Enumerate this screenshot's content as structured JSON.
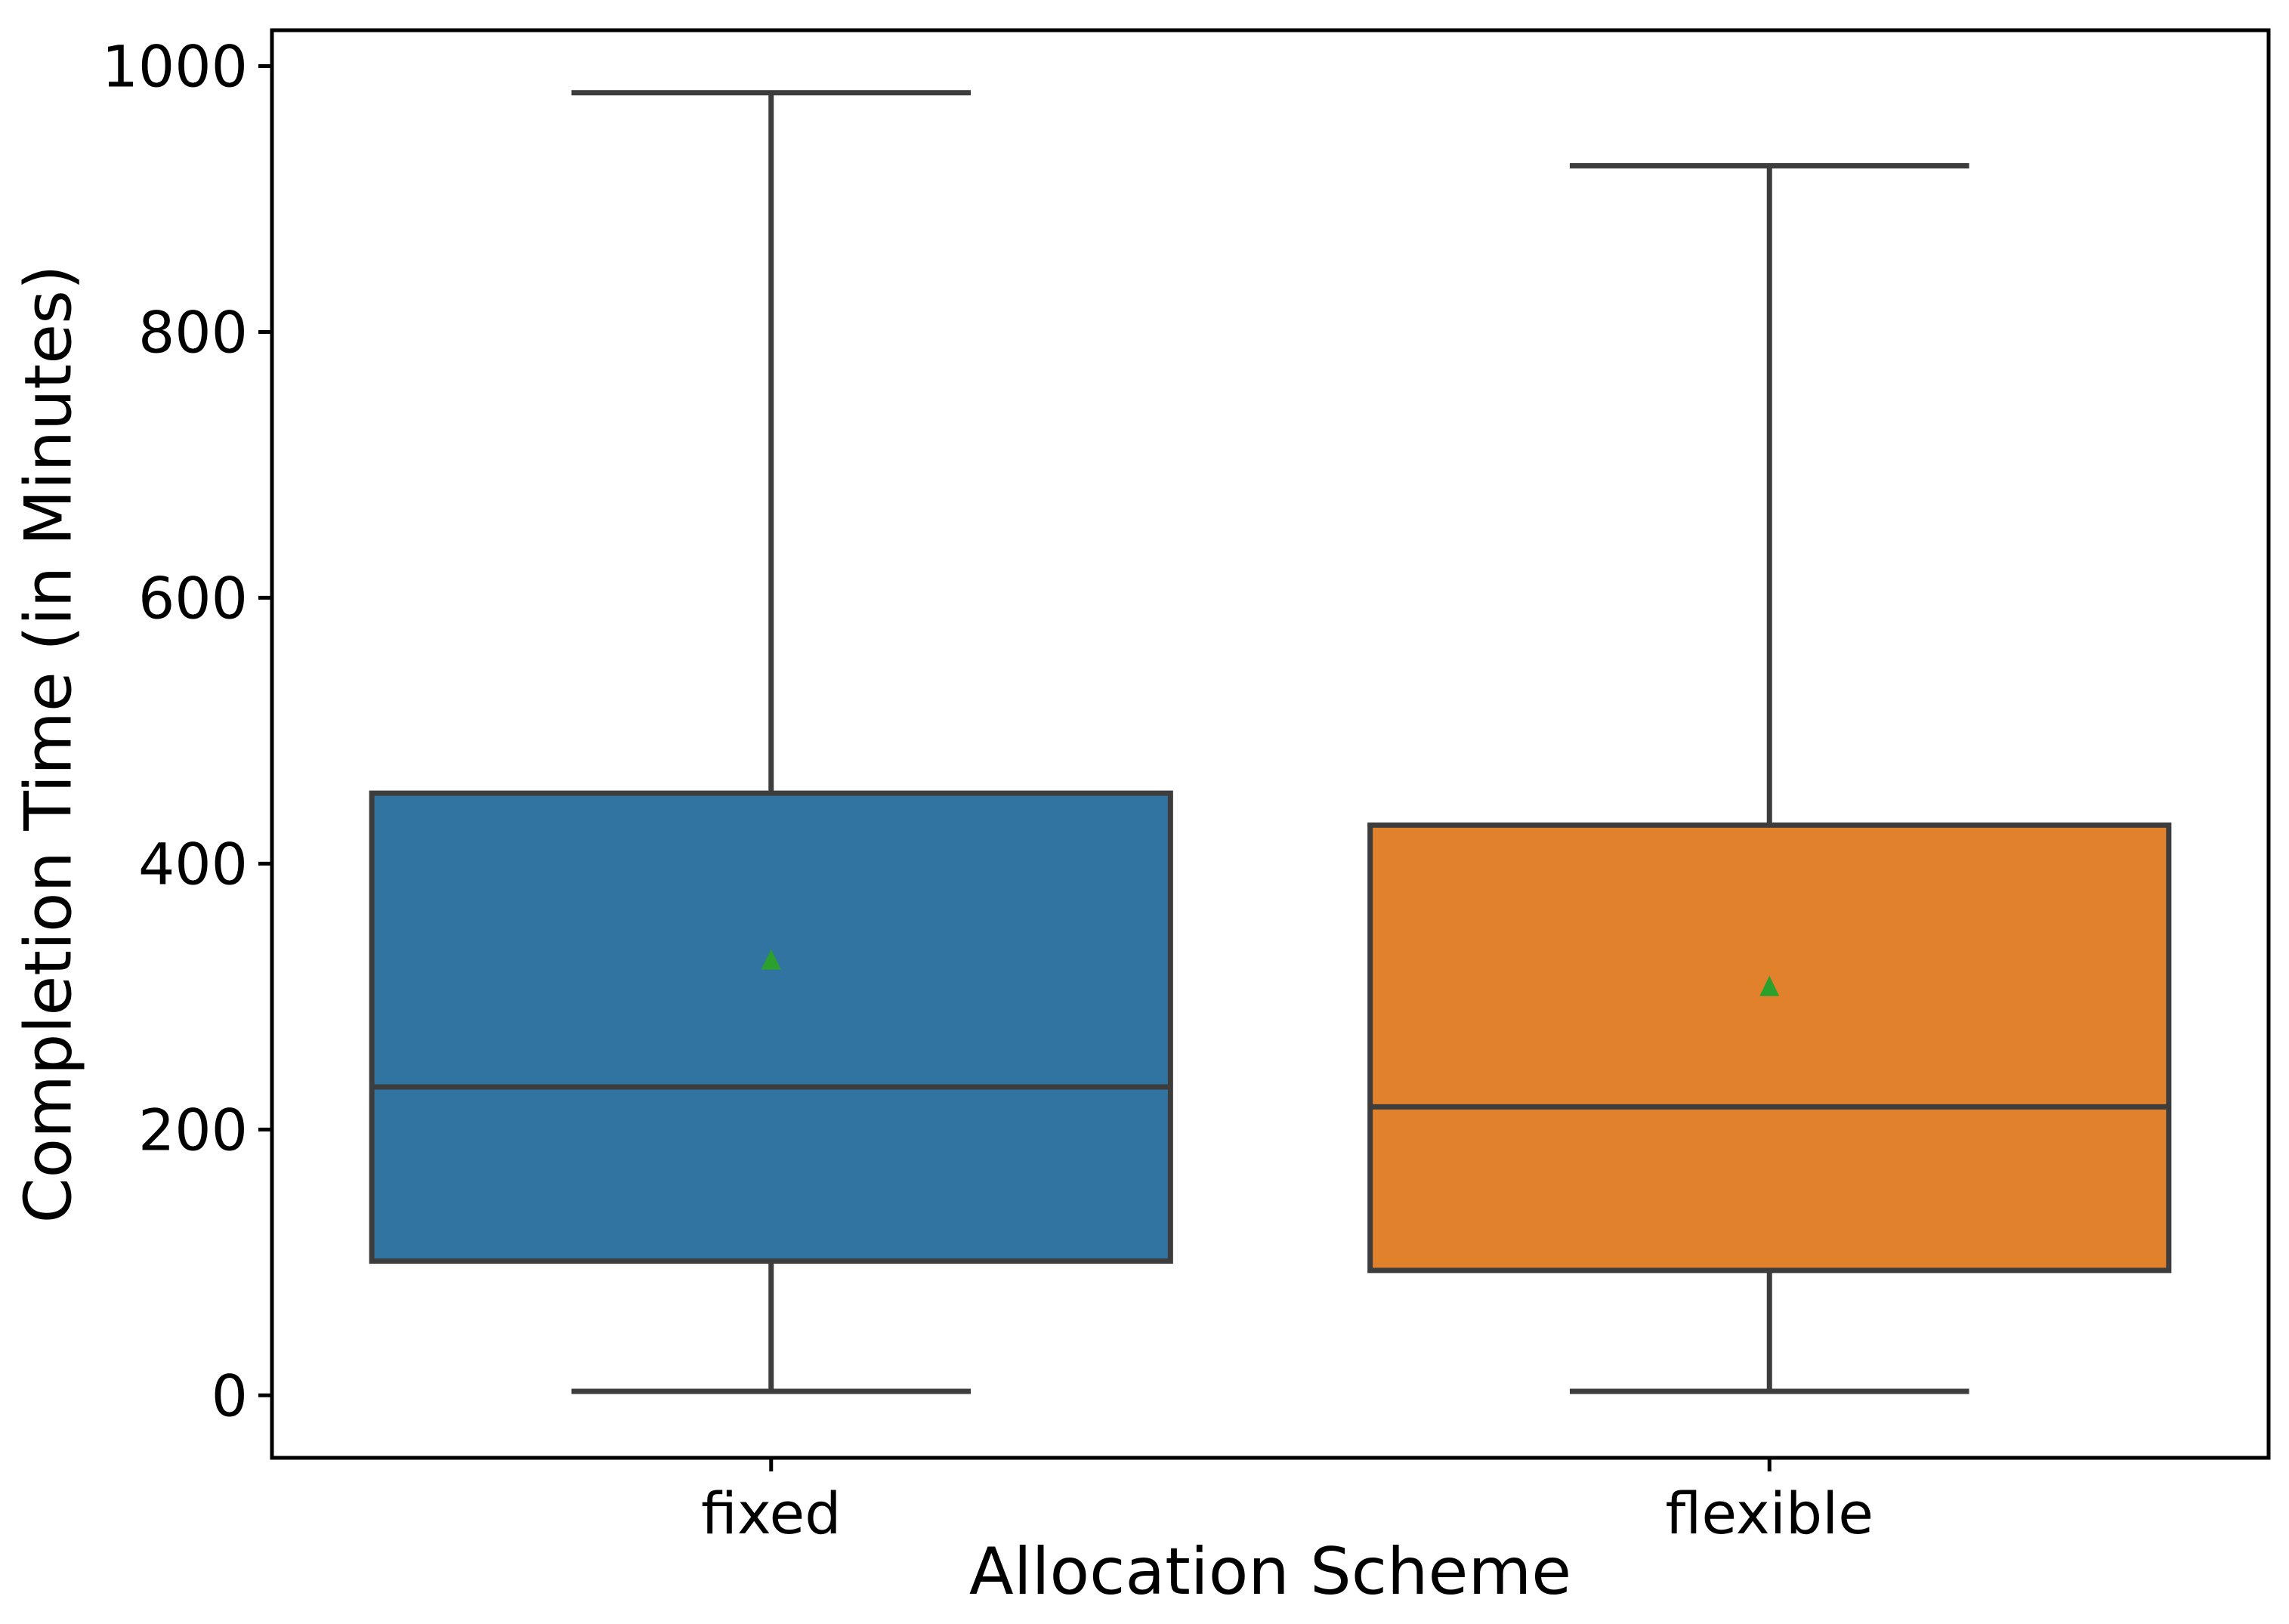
{
  "chart_data": {
    "type": "box",
    "title": "",
    "xlabel": "Allocation Scheme",
    "ylabel": "Completion Time (in Minutes)",
    "categories": [
      "fixed",
      "flexible"
    ],
    "y_ticks": [
      0,
      200,
      400,
      600,
      800,
      1000
    ],
    "ylim": [
      -47,
      1027
    ],
    "grid": false,
    "legend": "none",
    "series": [
      {
        "name": "fixed",
        "whisker_low": 3,
        "q1": 101,
        "median": 232,
        "q3": 453,
        "whisker_high": 980,
        "mean": 328,
        "fill_color": "#3274a1"
      },
      {
        "name": "flexible",
        "whisker_low": 3,
        "q1": 94,
        "median": 217,
        "q3": 429,
        "whisker_high": 925,
        "mean": 308,
        "fill_color": "#e1812c"
      }
    ],
    "mean_marker": "triangle-up",
    "mean_marker_color": "#2ca02c",
    "box_line_color": "#3d3d3d",
    "spine_color": "#000000",
    "tick_label_color": "#000000"
  }
}
